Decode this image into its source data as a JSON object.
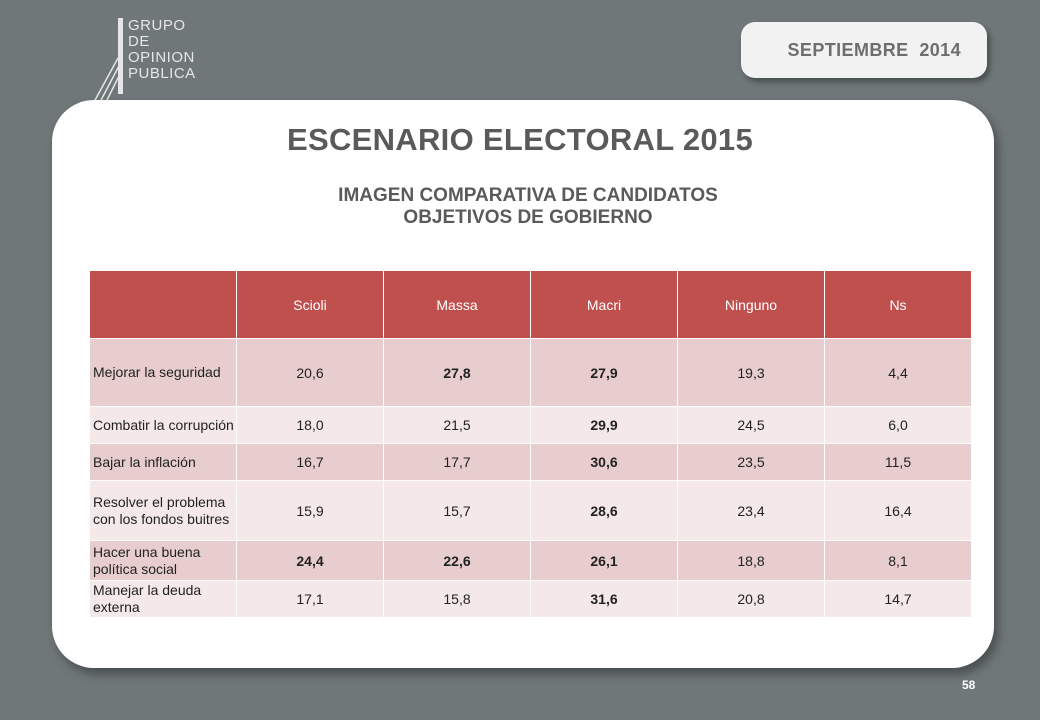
{
  "logo": {
    "lines": [
      "GRUPO",
      "DE",
      "OPINION",
      "PUBLICA"
    ]
  },
  "date_badge": "SEPTIEMBRE  2014",
  "title": "ESCENARIO ELECTORAL 2015",
  "subtitle_line1": "IMAGEN COMPARATIVA DE CANDIDATOS",
  "subtitle_line2": "OBJETIVOS DE GOBIERNO",
  "table": {
    "headers": [
      "",
      "Scioli",
      "Massa",
      "Macri",
      "Ninguno",
      "Ns"
    ],
    "rows": [
      {
        "label": " Mejorar la seguridad",
        "cells": [
          "20,6",
          "27,8",
          "27,9",
          "19,3",
          "4,4"
        ],
        "bold": [
          false,
          true,
          true,
          false,
          false
        ]
      },
      {
        "label": " Combatir la corrupción",
        "cells": [
          "18,0",
          "21,5",
          "29,9",
          "24,5",
          "6,0"
        ],
        "bold": [
          false,
          false,
          true,
          false,
          false
        ]
      },
      {
        "label": "  Bajar la inflación",
        "cells": [
          "16,7",
          "17,7",
          "30,6",
          "23,5",
          "11,5"
        ],
        "bold": [
          false,
          false,
          true,
          false,
          false
        ]
      },
      {
        "label": " Resolver el problema con los fondos buitres",
        "cells": [
          "15,9",
          "15,7",
          "28,6",
          "23,4",
          "16,4"
        ],
        "bold": [
          false,
          false,
          true,
          false,
          false
        ]
      },
      {
        "label": "  Hacer una buena política social",
        "cells": [
          "24,4",
          "22,6",
          "26,1",
          "18,8",
          "8,1"
        ],
        "bold": [
          true,
          true,
          true,
          false,
          false
        ]
      },
      {
        "label": "  Manejar la deuda externa",
        "cells": [
          "17,1",
          "15,8",
          "31,6",
          "20,8",
          "14,7"
        ],
        "bold": [
          false,
          false,
          true,
          false,
          false
        ]
      }
    ]
  },
  "page_number": "58"
}
